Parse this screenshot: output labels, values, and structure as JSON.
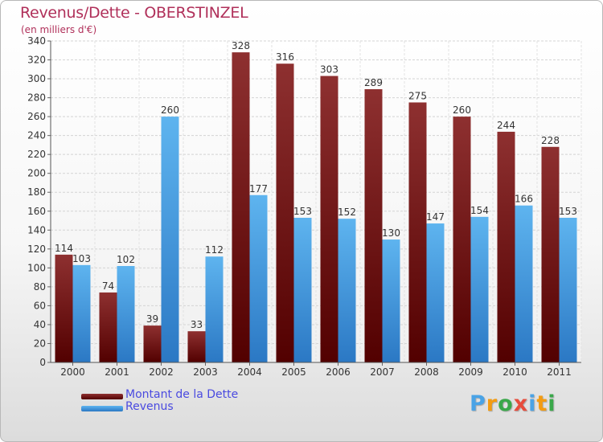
{
  "header": {
    "title": "Revenus/Dette - OBERSTINZEL",
    "subtitle": "(en milliers d'€)"
  },
  "chart_data": {
    "type": "bar",
    "categories": [
      "2000",
      "2001",
      "2002",
      "2003",
      "2004",
      "2005",
      "2006",
      "2007",
      "2008",
      "2009",
      "2010",
      "2011"
    ],
    "series": [
      {
        "name": "Montant de la Dette",
        "values": [
          114,
          74,
          39,
          33,
          328,
          316,
          303,
          289,
          275,
          260,
          244,
          228
        ],
        "color": "#8b1a1a"
      },
      {
        "name": "Revenus",
        "values": [
          103,
          102,
          260,
          112,
          177,
          153,
          152,
          130,
          147,
          154,
          166,
          153
        ],
        "color": "#4aa3e6"
      }
    ],
    "title": "Revenus/Dette - OBERSTINZEL",
    "ylabel": "(en milliers d'€)",
    "ylim": [
      0,
      340
    ],
    "yticks": [
      0,
      20,
      40,
      60,
      80,
      100,
      120,
      140,
      160,
      180,
      200,
      220,
      240,
      260,
      280,
      300,
      320,
      340
    ],
    "grid": true,
    "legend": "bottom-left",
    "data_labels": true
  },
  "logo": {
    "letters": [
      "P",
      "r",
      "o",
      "x",
      "i",
      "t",
      "i"
    ],
    "colors": [
      "#4aa3e6",
      "#f39c12",
      "#3aa84a",
      "#e74c3c",
      "#4aa3e6",
      "#f39c12",
      "#3aa84a"
    ]
  }
}
